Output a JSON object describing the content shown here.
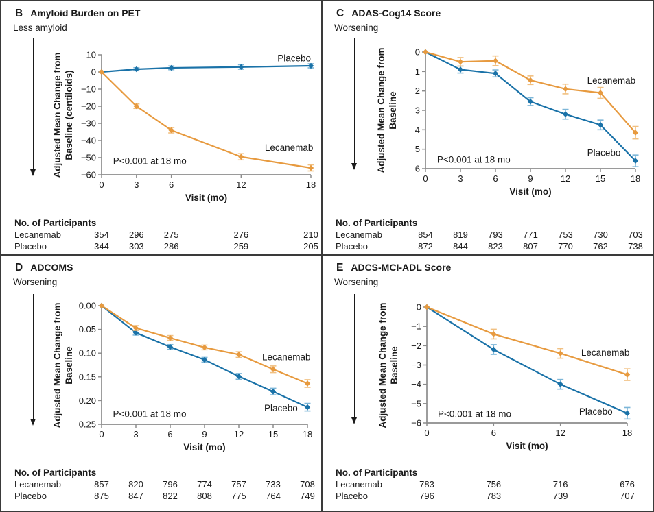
{
  "figure": {
    "participants_header": "No. of Participants",
    "colors": {
      "placebo": "#1A72A8",
      "lecanemab": "#E79A3F",
      "placebo_err": "#7CB6D8",
      "lecanemab_err": "#F1C081",
      "axis": "#8C8C8C",
      "text": "#1A1A1A",
      "border": "#3A3A3A"
    }
  },
  "chart_data": [
    {
      "panel_letter": "B",
      "title": "Amyloid Burden on PET",
      "direction_label": "Less amyloid",
      "type": "line",
      "xlabel": "Visit (mo)",
      "ylabel": "Adjusted Mean Change from\nBaseline (centiloids)",
      "annotation": "P<0.001 at 18 mo",
      "x": [
        0,
        3,
        6,
        12,
        18
      ],
      "xlim": [
        0,
        18
      ],
      "xticks": [
        0,
        3,
        6,
        12,
        18
      ],
      "ylim_top": 10,
      "ylim_bottom": -60,
      "yticks": [
        10,
        0,
        -10,
        -20,
        -30,
        -40,
        -50,
        -60
      ],
      "ytick_decimals": 0,
      "grid": false,
      "series": [
        {
          "name": "Placebo",
          "color_key": "placebo",
          "values": [
            0,
            1.6,
            2.4,
            2.9,
            3.6
          ],
          "err": [
            0,
            0.9,
            1.1,
            1.3,
            1.2
          ],
          "label_fx": 0.84,
          "label_fy": 0.055
        },
        {
          "name": "Lecanemab",
          "color_key": "lecanemab",
          "values": [
            0,
            -20,
            -34,
            -49.5,
            -56
          ],
          "err": [
            0,
            1.3,
            1.6,
            1.8,
            1.8
          ],
          "label_fx": 0.78,
          "label_fy": 0.8
        }
      ],
      "annotation_pos": {
        "fx": 0.055,
        "fy": 0.91
      },
      "participants": {
        "rows": [
          {
            "label": "Lecanemab",
            "values": [
              "354",
              "296",
              "275",
              "276",
              "210"
            ]
          },
          {
            "label": "Placebo",
            "values": [
              "344",
              "303",
              "286",
              "259",
              "205"
            ]
          }
        ]
      }
    },
    {
      "panel_letter": "C",
      "title": "ADAS-Cog14 Score",
      "direction_label": "Worsening",
      "type": "line",
      "xlabel": "Visit (mo)",
      "ylabel": "Adjusted Mean Change from\nBaseline",
      "annotation": "P<0.001 at 18 mo",
      "x": [
        0,
        3,
        6,
        9,
        12,
        15,
        18
      ],
      "xlim": [
        0,
        18
      ],
      "xticks": [
        0,
        3,
        6,
        9,
        12,
        15,
        18
      ],
      "ylim_top": 0,
      "ylim_bottom": 6,
      "yticks": [
        0,
        1,
        2,
        3,
        4,
        5,
        6
      ],
      "ytick_decimals": 0,
      "grid": false,
      "series": [
        {
          "name": "Placebo",
          "color_key": "placebo",
          "values": [
            0,
            0.9,
            1.1,
            2.55,
            3.2,
            3.75,
            5.6
          ],
          "err": [
            0,
            0.18,
            0.18,
            0.2,
            0.25,
            0.25,
            0.3
          ],
          "label_fx": 0.77,
          "label_fy": 0.89
        },
        {
          "name": "Lecanemab",
          "color_key": "lecanemab",
          "values": [
            0,
            0.5,
            0.45,
            1.45,
            1.9,
            2.1,
            4.15
          ],
          "err": [
            0,
            0.22,
            0.25,
            0.22,
            0.25,
            0.28,
            0.32
          ],
          "label_fx": 0.77,
          "label_fy": 0.27
        }
      ],
      "annotation_pos": {
        "fx": 0.055,
        "fy": 0.95
      },
      "participants": {
        "rows": [
          {
            "label": "Lecanemab",
            "values": [
              "854",
              "819",
              "793",
              "771",
              "753",
              "730",
              "703"
            ]
          },
          {
            "label": "Placebo",
            "values": [
              "872",
              "844",
              "823",
              "807",
              "770",
              "762",
              "738"
            ]
          }
        ]
      }
    },
    {
      "panel_letter": "D",
      "title": "ADCOMS",
      "direction_label": "Worsening",
      "type": "line",
      "xlabel": "Visit (mo)",
      "ylabel": "Adjusted Mean Change from\nBaseline",
      "annotation": "P<0.001 at 18 mo",
      "x": [
        0,
        3,
        6,
        9,
        12,
        15,
        18
      ],
      "xlim": [
        0,
        18
      ],
      "xticks": [
        0,
        3,
        6,
        9,
        12,
        15,
        18
      ],
      "ylim_top": 0,
      "ylim_bottom": 0.25,
      "yticks": [
        0,
        0.05,
        0.1,
        0.15,
        0.2,
        0.25
      ],
      "ytick_decimals": 2,
      "grid": false,
      "series": [
        {
          "name": "Placebo",
          "color_key": "placebo",
          "values": [
            0,
            0.057,
            0.087,
            0.114,
            0.149,
            0.181,
            0.214
          ],
          "err": [
            0,
            0.005,
            0.005,
            0.005,
            0.006,
            0.007,
            0.008
          ],
          "label_fx": 0.79,
          "label_fy": 0.89
        },
        {
          "name": "Lecanemab",
          "color_key": "lecanemab",
          "values": [
            0,
            0.047,
            0.068,
            0.088,
            0.103,
            0.134,
            0.164
          ],
          "err": [
            0,
            0.005,
            0.005,
            0.005,
            0.006,
            0.007,
            0.008
          ],
          "label_fx": 0.78,
          "label_fy": 0.46
        }
      ],
      "annotation_pos": {
        "fx": 0.055,
        "fy": 0.94
      },
      "participants": {
        "rows": [
          {
            "label": "Lecanemab",
            "values": [
              "857",
              "820",
              "796",
              "774",
              "757",
              "733",
              "708"
            ]
          },
          {
            "label": "Placebo",
            "values": [
              "875",
              "847",
              "822",
              "808",
              "775",
              "764",
              "749"
            ]
          }
        ]
      }
    },
    {
      "panel_letter": "E",
      "title": "ADCS-MCI-ADL Score",
      "direction_label": "Worsening",
      "type": "line",
      "xlabel": "Visit (mo)",
      "ylabel": "Adjusted Mean Change from\nBaseline",
      "annotation": "P<0.001 at 18 mo",
      "x": [
        0,
        6,
        12,
        18
      ],
      "xlim": [
        0,
        18
      ],
      "xticks": [
        0,
        6,
        12,
        18
      ],
      "ylim_top": 0,
      "ylim_bottom": -6,
      "yticks": [
        0,
        -1,
        -2,
        -3,
        -4,
        -5,
        -6
      ],
      "ytick_decimals": 0,
      "grid": false,
      "series": [
        {
          "name": "Placebo",
          "color_key": "placebo",
          "values": [
            0,
            -2.2,
            -4.0,
            -5.5
          ],
          "err": [
            0,
            0.25,
            0.25,
            0.3
          ],
          "label_fx": 0.76,
          "label_fy": 0.93
        },
        {
          "name": "Lecanemab",
          "color_key": "lecanemab",
          "values": [
            0,
            -1.4,
            -2.4,
            -3.5
          ],
          "err": [
            0,
            0.25,
            0.25,
            0.3
          ],
          "label_fx": 0.77,
          "label_fy": 0.42
        }
      ],
      "annotation_pos": {
        "fx": 0.055,
        "fy": 0.95
      },
      "participants": {
        "rows": [
          {
            "label": "Lecanemab",
            "values": [
              "783",
              "756",
              "716",
              "676"
            ]
          },
          {
            "label": "Placebo",
            "values": [
              "796",
              "783",
              "739",
              "707"
            ]
          }
        ]
      }
    }
  ]
}
